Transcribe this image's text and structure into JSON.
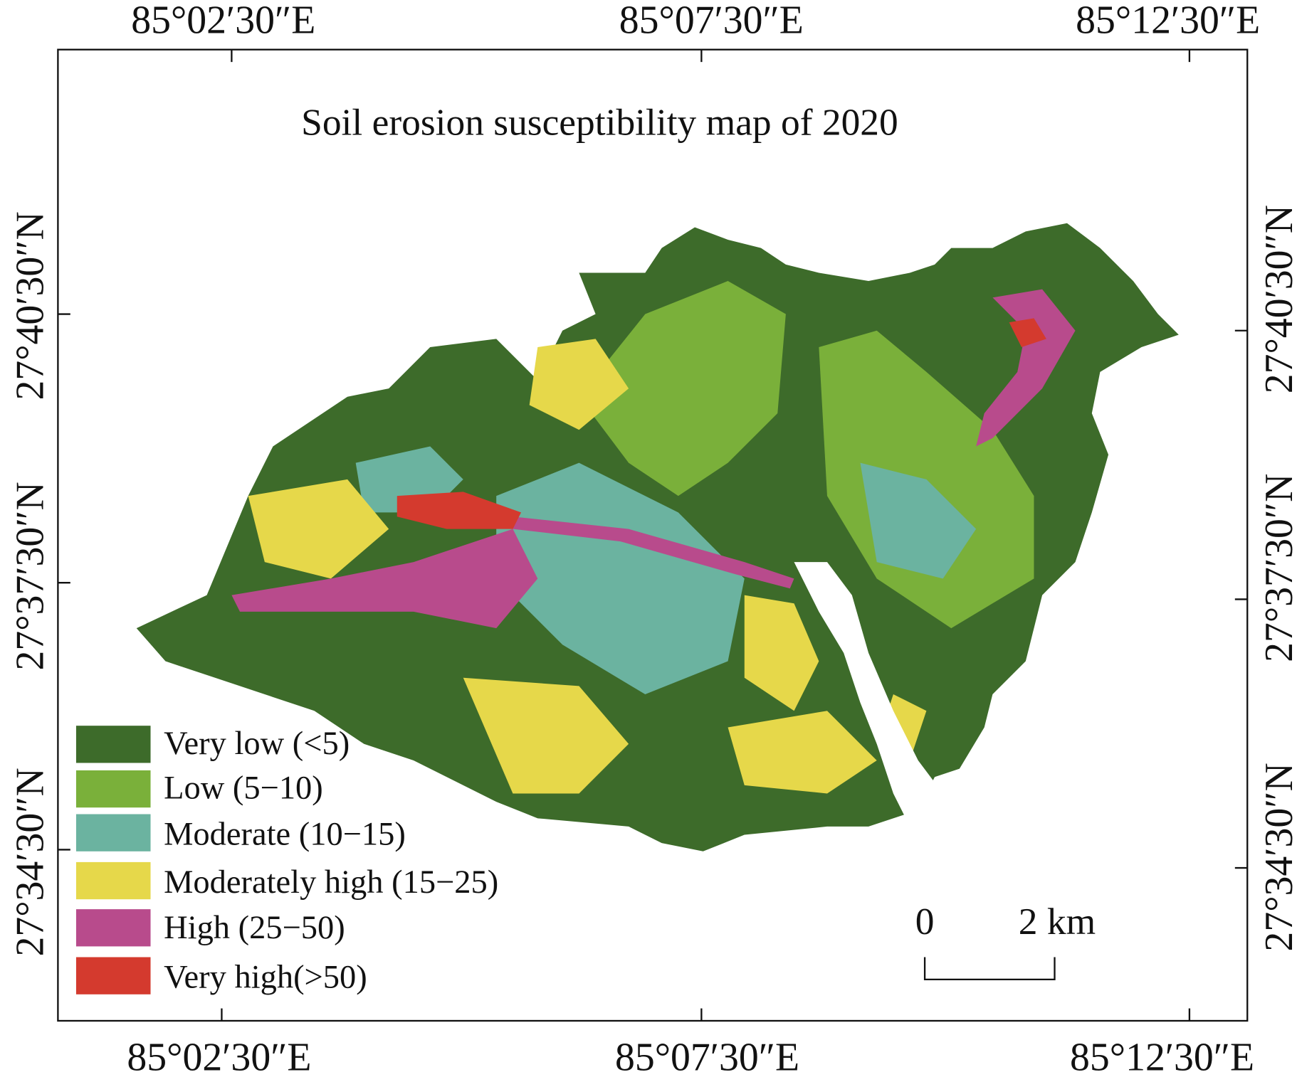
{
  "title": "Soil erosion susceptibility map of 2020",
  "top_labels": [
    "85°02′30″E",
    "85°07′30″E",
    "85°12′30″E"
  ],
  "bottom_labels": [
    "85°02′30″E",
    "85°07′30″E",
    "85°12′30″E"
  ],
  "left_labels": [
    "27°40′30″N",
    "27°37′30″N",
    "27°34′30″N"
  ],
  "right_labels": [
    "27°40′30″N",
    "27°37′30″N",
    "27°34′30″N"
  ],
  "legend": [
    {
      "label": "Very low (<5)",
      "color": "#3d6b2a"
    },
    {
      "label": "Low (5−10)",
      "color": "#7ab03a"
    },
    {
      "label": "Moderate (10−15)",
      "color": "#6bb3a0"
    },
    {
      "label": "Moderately high (15−25)",
      "color": "#e6d84a"
    },
    {
      "label": "High (25−50)",
      "color": "#b84b8c"
    },
    {
      "label": "Very high(>50)",
      "color": "#d43a2e"
    }
  ],
  "scale_bar": {
    "start": "0",
    "end": "2 km"
  }
}
